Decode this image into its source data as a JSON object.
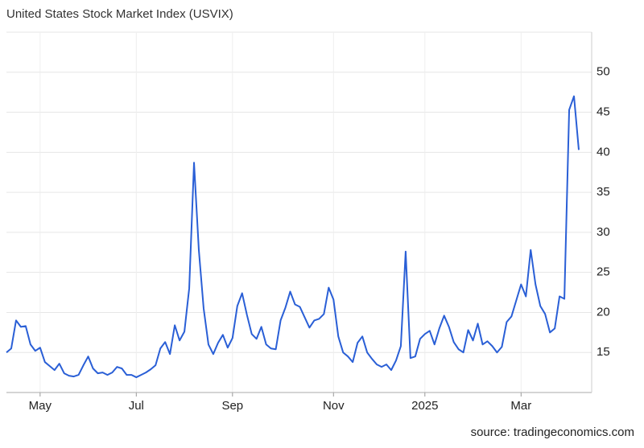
{
  "chart_data": {
    "type": "line",
    "title": "United States Stock Market Index (USVIX)",
    "source": "source: tradingeconomics.com",
    "categories": [
      null,
      null,
      null,
      null,
      null,
      null,
      null,
      "May",
      null,
      null,
      null,
      null,
      null,
      null,
      null,
      null,
      null,
      null,
      null,
      null,
      null,
      null,
      null,
      null,
      null,
      null,
      null,
      "Jul",
      null,
      null,
      null,
      null,
      null,
      null,
      null,
      null,
      null,
      null,
      null,
      null,
      null,
      null,
      null,
      null,
      null,
      null,
      null,
      "Sep",
      null,
      null,
      null,
      null,
      null,
      null,
      null,
      null,
      null,
      null,
      null,
      null,
      null,
      null,
      null,
      null,
      null,
      null,
      null,
      null,
      "Nov",
      null,
      null,
      null,
      null,
      null,
      null,
      null,
      null,
      null,
      null,
      null,
      null,
      null,
      null,
      null,
      null,
      null,
      null,
      "2025",
      null,
      null,
      null,
      null,
      null,
      null,
      null,
      null,
      null,
      null,
      null,
      null,
      null,
      null,
      null,
      null,
      null,
      null,
      null,
      "Mar",
      null,
      null,
      null,
      null,
      null,
      null,
      null,
      null,
      null,
      null,
      null,
      null
    ],
    "series": [
      {
        "color": "#2a5fd6",
        "values": [
          15.0,
          15.5,
          19.0,
          18.2,
          18.3,
          16.0,
          15.2,
          15.6,
          13.8,
          13.3,
          12.8,
          13.6,
          12.4,
          12.1,
          12.0,
          12.2,
          13.4,
          14.5,
          13.0,
          12.4,
          12.5,
          12.2,
          12.5,
          13.2,
          13.0,
          12.2,
          12.2,
          11.9,
          12.2,
          12.5,
          12.9,
          13.4,
          15.5,
          16.3,
          14.8,
          18.4,
          16.5,
          17.6,
          23.0,
          38.7,
          27.8,
          20.5,
          16.0,
          14.8,
          16.2,
          17.2,
          15.6,
          16.8,
          20.8,
          22.4,
          19.7,
          17.3,
          16.7,
          18.2,
          16.0,
          15.5,
          15.4,
          19.0,
          20.6,
          22.6,
          21.0,
          20.7,
          19.4,
          18.1,
          19.0,
          19.2,
          19.8,
          23.1,
          21.6,
          17.0,
          15.0,
          14.5,
          13.8,
          16.2,
          17.0,
          15.0,
          14.2,
          13.5,
          13.2,
          13.5,
          12.8,
          14.0,
          15.8,
          27.6,
          14.3,
          14.5,
          16.7,
          17.3,
          17.7,
          16.0,
          18.0,
          19.6,
          18.2,
          16.3,
          15.4,
          15.0,
          17.8,
          16.5,
          18.6,
          16.0,
          16.4,
          15.8,
          15.0,
          15.7,
          18.8,
          19.5,
          21.5,
          23.5,
          22.0,
          27.8,
          23.5,
          20.8,
          19.8,
          17.5,
          18.0,
          22.0,
          21.7,
          45.3,
          47.0,
          40.3
        ]
      }
    ],
    "ylim": [
      10,
      55
    ],
    "yticks": [
      15,
      20,
      25,
      30,
      35,
      40,
      45,
      50
    ],
    "grid": true
  }
}
